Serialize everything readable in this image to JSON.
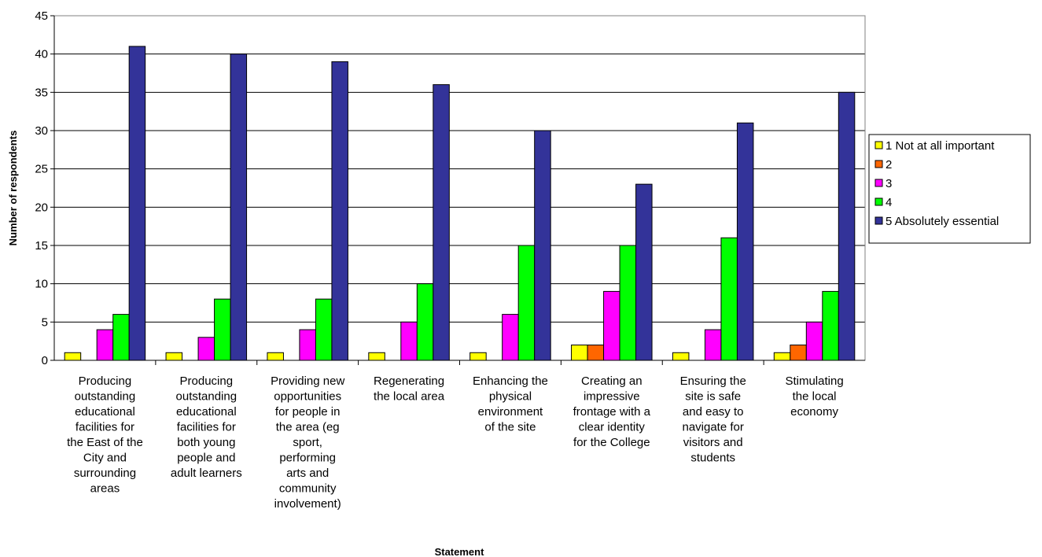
{
  "chart_data": {
    "type": "bar",
    "xlabel": "Statement",
    "ylabel": "Number of respondents",
    "ylim": [
      0,
      45
    ],
    "ytick_step": 5,
    "grid": true,
    "legend_position": "right",
    "categories": [
      [
        "Producing",
        "outstanding",
        "educational",
        "facilities for",
        "the East of the",
        "City and",
        "surrounding",
        "areas"
      ],
      [
        "Producing",
        "outstanding",
        "educational",
        "facilities for",
        "both young",
        "people and",
        "adult learners"
      ],
      [
        "Providing new",
        "opportunities",
        "for people in",
        "the area (eg",
        "sport,",
        "performing",
        "arts and",
        "community",
        "involvement)"
      ],
      [
        "Regenerating",
        "the local area"
      ],
      [
        "Enhancing the",
        "physical",
        "environment",
        "of the site"
      ],
      [
        "Creating an",
        "impressive",
        "frontage with a",
        "clear identity",
        "for the College"
      ],
      [
        "Ensuring the",
        "site is safe",
        "and easy to",
        "navigate for",
        "visitors and",
        "students"
      ],
      [
        "Stimulating",
        "the local",
        "economy"
      ]
    ],
    "series": [
      {
        "name": "1 Not at all important",
        "color": "#ffff00",
        "values": [
          1,
          1,
          1,
          1,
          1,
          2,
          1,
          1
        ]
      },
      {
        "name": "2",
        "color": "#ff6600",
        "values": [
          0,
          0,
          0,
          0,
          0,
          2,
          0,
          2
        ]
      },
      {
        "name": "3",
        "color": "#ff00ff",
        "values": [
          4,
          3,
          4,
          5,
          6,
          9,
          4,
          5
        ]
      },
      {
        "name": "4",
        "color": "#00ff00",
        "values": [
          6,
          8,
          8,
          10,
          15,
          15,
          16,
          9
        ]
      },
      {
        "name": "5 Absolutely essential",
        "color": "#333399",
        "values": [
          41,
          40,
          39,
          36,
          30,
          23,
          31,
          35
        ]
      }
    ]
  }
}
